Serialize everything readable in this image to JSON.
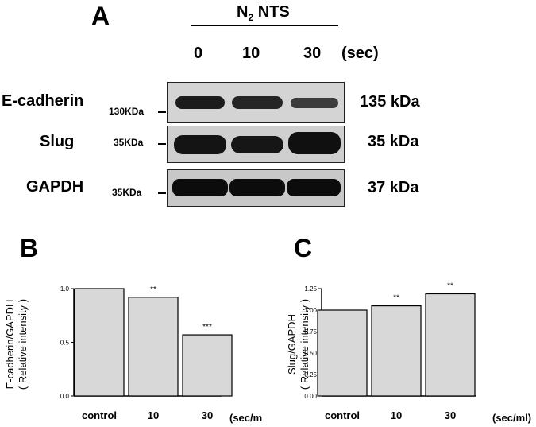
{
  "panel_a": {
    "letter": "A",
    "treatment_main": "N",
    "treatment_sub": "2",
    "treatment_rest": " NTS",
    "conditions": [
      "0",
      "10",
      "30"
    ],
    "condition_unit": "(sec)",
    "rows": [
      {
        "protein": "E-cadherin",
        "marker": "130KDa",
        "size": "135 kDa",
        "intensity": [
          0.85,
          0.8,
          0.55
        ]
      },
      {
        "protein": "Slug",
        "marker": "35KDa",
        "size": "35 kDa",
        "intensity": [
          0.95,
          0.95,
          1.0
        ]
      },
      {
        "protein": "GAPDH",
        "marker": "35KDa",
        "size": "37 kDa",
        "intensity": [
          1.0,
          1.0,
          1.0
        ]
      }
    ]
  },
  "chart_data": [
    {
      "type": "bar",
      "letter": "B",
      "categories": [
        "control",
        "10",
        "30"
      ],
      "values": [
        1.0,
        0.92,
        0.57
      ],
      "significance": [
        "",
        "**",
        "***"
      ],
      "ylabel": "E-cadherin/GAPDH",
      "ylabel2": "( Relative intensity )",
      "xunit": "(sec/ml)",
      "ylim": [
        0,
        1.0
      ],
      "yticks": [
        "0.0",
        "0.5",
        "1.0"
      ],
      "bar_color": "#d8d8d8"
    },
    {
      "type": "bar",
      "letter": "C",
      "categories": [
        "control",
        "10",
        "30"
      ],
      "values": [
        1.0,
        1.05,
        1.19
      ],
      "significance": [
        "",
        "**",
        "**"
      ],
      "ylabel": "Slug/GAPDH",
      "ylabel2": "( Relative intensity )",
      "xunit": "(sec/ml)",
      "ylim": [
        0,
        1.25
      ],
      "yticks": [
        "0.00",
        "0.25",
        "0.50",
        "0.75",
        "1.00",
        "1.25"
      ],
      "bar_color": "#d8d8d8"
    }
  ]
}
